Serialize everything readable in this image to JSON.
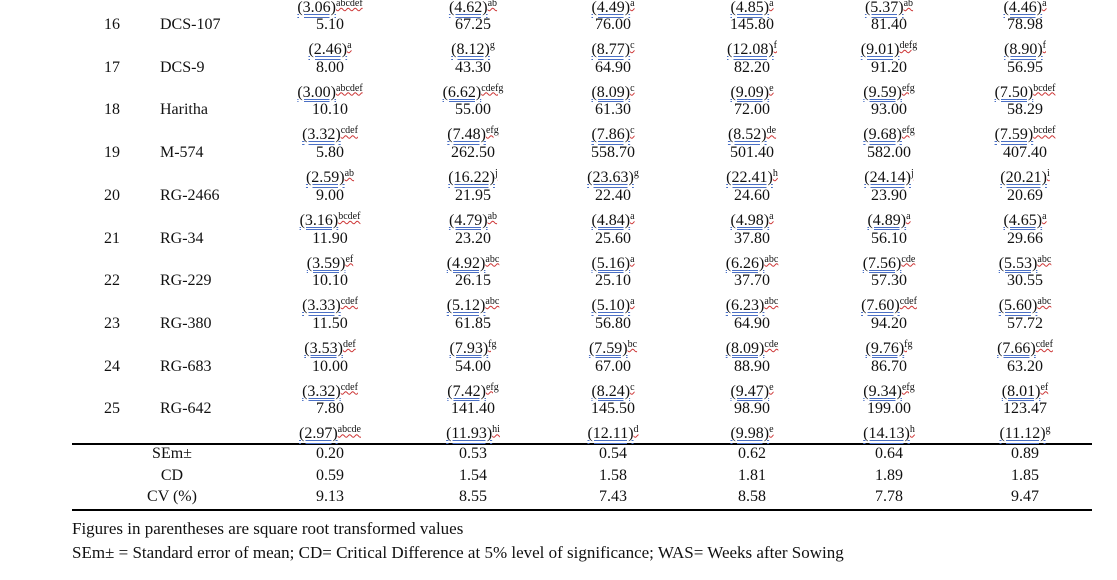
{
  "partial_row": {
    "transformed": [
      {
        "value": "(3.06)",
        "sup": "abcdef"
      },
      {
        "value": "(4.62)",
        "sup": "ab"
      },
      {
        "value": "(4.49)",
        "sup": "a"
      },
      {
        "value": "(4.85)",
        "sup": "a"
      },
      {
        "value": "(5.37)",
        "sup": "ab"
      },
      {
        "value": "(4.46)",
        "sup": "a"
      }
    ]
  },
  "table": {
    "rows": [
      {
        "no": "16",
        "name": "DCS-107",
        "values": [
          "5.10",
          "67.25",
          "76.00",
          "145.80",
          "81.40",
          "78.98"
        ],
        "transformed": [
          {
            "value": "(2.46)",
            "sup": "a"
          },
          {
            "value": "(8.12)",
            "sup": "g"
          },
          {
            "value": "(8.77)",
            "sup": "c"
          },
          {
            "value": "(12.08)",
            "sup": "f"
          },
          {
            "value": "(9.01)",
            "sup": "defg"
          },
          {
            "value": "(8.90)",
            "sup": "f"
          }
        ]
      },
      {
        "no": "17",
        "name": "DCS-9",
        "values": [
          "8.00",
          "43.30",
          "64.90",
          "82.20",
          "91.20",
          "56.95"
        ],
        "transformed": [
          {
            "value": "(3.00)",
            "sup": "abcdef"
          },
          {
            "value": "(6.62)",
            "sup": "cdefg"
          },
          {
            "value": "(8.09)",
            "sup": "c"
          },
          {
            "value": "(9.09)",
            "sup": "e"
          },
          {
            "value": "(9.59)",
            "sup": "efg"
          },
          {
            "value": "(7.50)",
            "sup": "bcdef"
          }
        ]
      },
      {
        "no": "18",
        "name": "Haritha",
        "values": [
          "10.10",
          "55.00",
          "61.30",
          "72.00",
          "93.00",
          "58.29"
        ],
        "transformed": [
          {
            "value": "(3.32)",
            "sup": "cdef"
          },
          {
            "value": "(7.48)",
            "sup": "efg"
          },
          {
            "value": "(7.86)",
            "sup": "c"
          },
          {
            "value": "(8.52)",
            "sup": "de"
          },
          {
            "value": "(9.68)",
            "sup": "efg"
          },
          {
            "value": "(7.59)",
            "sup": "bcdef"
          }
        ]
      },
      {
        "no": "19",
        "name": "M-574",
        "values": [
          "5.80",
          "262.50",
          "558.70",
          "501.40",
          "582.00",
          "407.40"
        ],
        "transformed": [
          {
            "value": "(2.59)",
            "sup": "ab"
          },
          {
            "value": "(16.22)",
            "sup": "j"
          },
          {
            "value": "(23.63)",
            "sup": "g"
          },
          {
            "value": "(22.41)",
            "sup": "h"
          },
          {
            "value": "(24.14)",
            "sup": "j"
          },
          {
            "value": "(20.21)",
            "sup": "i"
          }
        ]
      },
      {
        "no": "20",
        "name": "RG-2466",
        "values": [
          "9.00",
          "21.95",
          "22.40",
          "24.60",
          "23.90",
          "20.69"
        ],
        "transformed": [
          {
            "value": "(3.16)",
            "sup": "bcdef"
          },
          {
            "value": "(4.79)",
            "sup": "ab"
          },
          {
            "value": "(4.84)",
            "sup": "a"
          },
          {
            "value": "(4.98)",
            "sup": "a"
          },
          {
            "value": "(4.89)",
            "sup": "a"
          },
          {
            "value": "(4.65)",
            "sup": "a"
          }
        ]
      },
      {
        "no": "21",
        "name": "RG-34",
        "values": [
          "11.90",
          "23.20",
          "25.60",
          "37.80",
          "56.10",
          "29.66"
        ],
        "transformed": [
          {
            "value": "(3.59)",
            "sup": "ef"
          },
          {
            "value": "(4.92)",
            "sup": "abc"
          },
          {
            "value": "(5.16)",
            "sup": "a"
          },
          {
            "value": "(6.26)",
            "sup": "abc"
          },
          {
            "value": "(7.56)",
            "sup": "cde"
          },
          {
            "value": "(5.53)",
            "sup": "abc"
          }
        ]
      },
      {
        "no": "22",
        "name": "RG-229",
        "values": [
          "10.10",
          "26.15",
          "25.10",
          "37.70",
          "57.30",
          "30.55"
        ],
        "transformed": [
          {
            "value": "(3.33)",
            "sup": "cdef"
          },
          {
            "value": "(5.12)",
            "sup": "abc"
          },
          {
            "value": "(5.10)",
            "sup": "a"
          },
          {
            "value": "(6.23)",
            "sup": "abc"
          },
          {
            "value": "(7.60)",
            "sup": "cdef"
          },
          {
            "value": "(5.60)",
            "sup": "abc"
          }
        ]
      },
      {
        "no": "23",
        "name": "RG-380",
        "values": [
          "11.50",
          "61.85",
          "56.80",
          "64.90",
          "94.20",
          "57.72"
        ],
        "transformed": [
          {
            "value": "(3.53)",
            "sup": "def"
          },
          {
            "value": "(7.93)",
            "sup": "fg"
          },
          {
            "value": "(7.59)",
            "sup": "bc"
          },
          {
            "value": "(8.09)",
            "sup": "cde"
          },
          {
            "value": "(9.76)",
            "sup": "fg"
          },
          {
            "value": "(7.66)",
            "sup": "cdef"
          }
        ]
      },
      {
        "no": "24",
        "name": "RG-683",
        "values": [
          "10.00",
          "54.00",
          "67.00",
          "88.90",
          "86.70",
          "63.20"
        ],
        "transformed": [
          {
            "value": "(3.32)",
            "sup": "cdef"
          },
          {
            "value": "(7.42)",
            "sup": "efg"
          },
          {
            "value": "(8.24)",
            "sup": "c"
          },
          {
            "value": "(9.47)",
            "sup": "e"
          },
          {
            "value": "(9.34)",
            "sup": "efg"
          },
          {
            "value": "(8.01)",
            "sup": "ef"
          }
        ]
      },
      {
        "no": "25",
        "name": "RG-642",
        "values": [
          "7.80",
          "141.40",
          "145.50",
          "98.90",
          "199.00",
          "123.47"
        ],
        "transformed": [
          {
            "value": "(2.97)",
            "sup": "abcde"
          },
          {
            "value": "(11.93)",
            "sup": "hi"
          },
          {
            "value": "(12.11)",
            "sup": "d"
          },
          {
            "value": "(9.98)",
            "sup": "e"
          },
          {
            "value": "(14.13)",
            "sup": "h"
          },
          {
            "value": "(11.12)",
            "sup": "g"
          }
        ]
      }
    ],
    "stats": [
      {
        "label": "SEm±",
        "values": [
          "0.20",
          "0.53",
          "0.54",
          "0.62",
          "0.64",
          "0.89"
        ]
      },
      {
        "label": "CD",
        "values": [
          "0.59",
          "1.54",
          "1.58",
          "1.81",
          "1.89",
          "1.85"
        ]
      },
      {
        "label": "CV (%)",
        "values": [
          "9.13",
          "8.55",
          "7.43",
          "8.58",
          "7.78",
          "9.47"
        ]
      }
    ]
  },
  "footnotes": [
    "Figures in parentheses are square root transformed values",
    "SEm± = Standard error of mean; CD= Critical Difference at 5% level of significance; WAS= Weeks after Sowing"
  ]
}
